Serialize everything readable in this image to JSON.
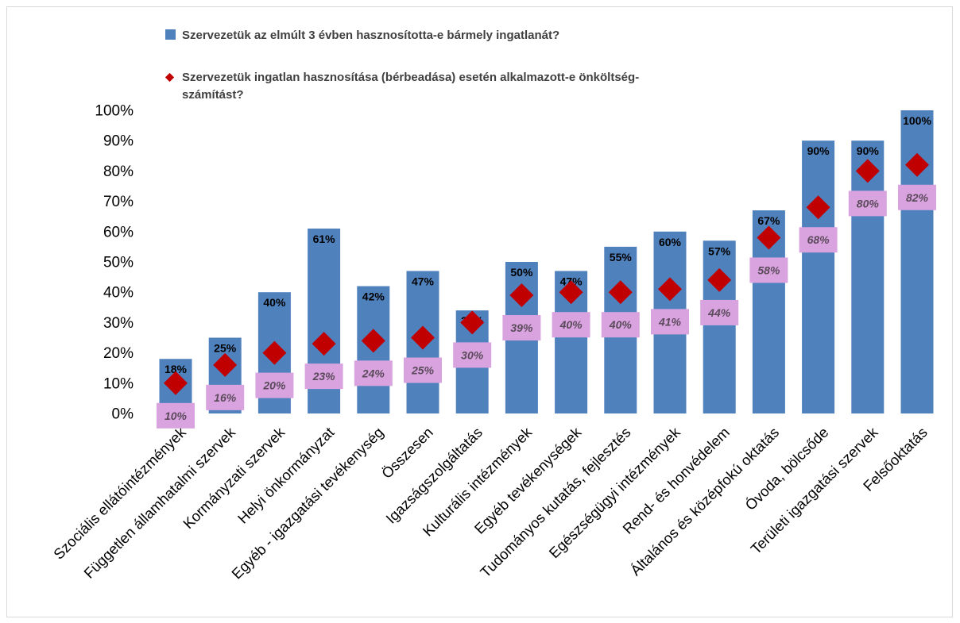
{
  "chart_data": {
    "type": "bar",
    "categories": [
      "Szociális ellátóintézmények",
      "Független államhatalmi szervek",
      "Kormányzati szervek",
      "Helyi önkormányzat",
      "Egyéb - igazgatási tevékenység",
      "Összesen",
      "Igazságszolgáltatás",
      "Kulturális intézmények",
      "Egyéb tevékenységek",
      "Tudományos kutatás, fejlesztés",
      "Egészségügyi intézmények",
      "Rend- és honvédelem",
      "Általános és középfokú oktatás",
      "Óvoda, bölcsőde",
      "Területi igazgatási szervek",
      "Felsőoktatás"
    ],
    "series": [
      {
        "name": "Szervezetük az elmúlt 3 évben hasznosította-e bármely ingatlanát?",
        "kind": "bar",
        "color": "#4f81bd",
        "values": [
          18,
          25,
          40,
          61,
          42,
          47,
          34,
          50,
          47,
          55,
          60,
          57,
          67,
          90,
          90,
          100
        ],
        "labels": [
          "18%",
          "25%",
          "40%",
          "61%",
          "42%",
          "47%",
          "34%",
          "50%",
          "47%",
          "55%",
          "60%",
          "57%",
          "67%",
          "90%",
          "90%",
          "100%"
        ]
      },
      {
        "name_line1": "Szervezetük ingatlan hasznosítása (bérbeadása) esetén alkalmazott-e önköltség-",
        "name_line2": "számítást?",
        "kind": "marker",
        "color": "#c00000",
        "label_bg": "#d9a3e0",
        "label_color": "#5a4a5a",
        "values": [
          10,
          16,
          20,
          23,
          24,
          25,
          30,
          39,
          40,
          40,
          41,
          44,
          58,
          68,
          80,
          82
        ],
        "labels": [
          "10%",
          "16%",
          "20%",
          "23%",
          "24%",
          "25%",
          "30%",
          "39%",
          "40%",
          "40%",
          "41%",
          "44%",
          "58%",
          "68%",
          "80%",
          "82%"
        ]
      }
    ],
    "y_ticks": [
      "0%",
      "10%",
      "20%",
      "30%",
      "40%",
      "50%",
      "60%",
      "70%",
      "80%",
      "90%",
      "100%"
    ],
    "ylim": [
      0,
      100
    ],
    "grid": false,
    "legend_position": "top"
  }
}
